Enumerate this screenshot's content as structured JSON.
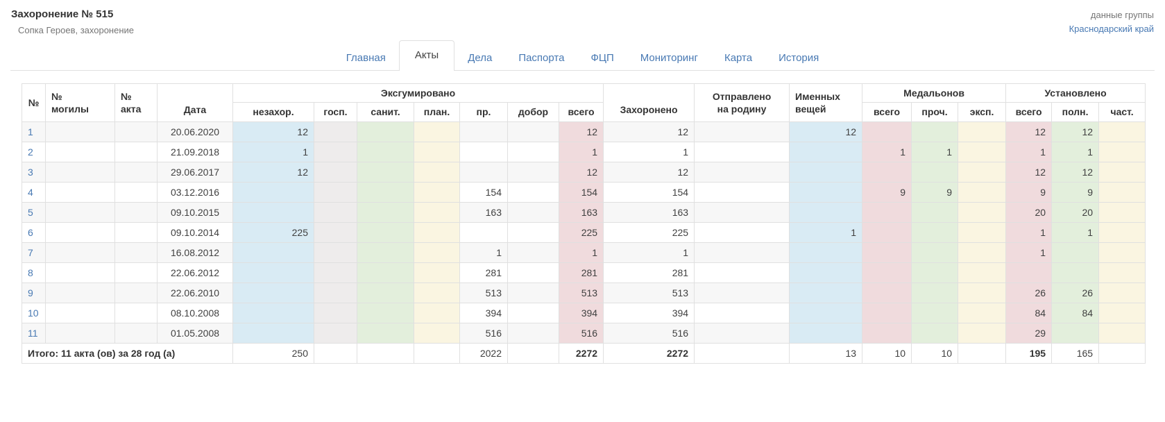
{
  "page": {
    "title": "Захоронение № 515",
    "subtitle": "Сопка Героев, захоронение",
    "group_label": "данные группы",
    "group_link": "Краснодарский край"
  },
  "tabs": [
    {
      "label": "Главная",
      "active": false
    },
    {
      "label": "Акты",
      "active": true
    },
    {
      "label": "Дела",
      "active": false
    },
    {
      "label": "Паспорта",
      "active": false
    },
    {
      "label": "ФЦП",
      "active": false
    },
    {
      "label": "Мониторинг",
      "active": false
    },
    {
      "label": "Карта",
      "active": false
    },
    {
      "label": "История",
      "active": false
    }
  ],
  "colors": {
    "link": "#4879b3",
    "text": "#3c3c3c",
    "muted": "#757575",
    "border": "#e0e0e0",
    "zebra": "#f7f7f7",
    "tint_blue": "#d9ebf4",
    "tint_gray": "#eeecec",
    "tint_green": "#e3efdc",
    "tint_cream": "#faf5e1",
    "tint_pink": "#f0dbdd"
  },
  "table": {
    "header": {
      "no": "№",
      "grave_no": "№\nмогилы",
      "act_no": "№\nакта",
      "date": "Дата",
      "exhumed": "Эксгумировано",
      "exhumed_cols": [
        "незахор.",
        "госп.",
        "санит.",
        "план.",
        "пр.",
        "добор",
        "всего"
      ],
      "buried": "Захоронено",
      "sent_home": "Отправлено\nна родину",
      "items": "Именных\nвещей",
      "medallions": "Медальонов",
      "medallions_cols": [
        "всего",
        "проч.",
        "эксп."
      ],
      "established": "Установлено",
      "established_cols": [
        "всего",
        "полн.",
        "част."
      ]
    },
    "rows": [
      {
        "no": "1",
        "grave_no": "",
        "act_no": "",
        "date": "20.06.2020",
        "nezahor": "12",
        "gosp": "",
        "sanit": "",
        "plan": "",
        "pr": "",
        "dobor": "",
        "vsego": "12",
        "buried": "12",
        "sent": "",
        "items": "12",
        "med_vsego": "",
        "med_proch": "",
        "med_eksp": "",
        "ust_vsego": "12",
        "ust_poln": "12",
        "ust_chast": ""
      },
      {
        "no": "2",
        "grave_no": "",
        "act_no": "",
        "date": "21.09.2018",
        "nezahor": "1",
        "gosp": "",
        "sanit": "",
        "plan": "",
        "pr": "",
        "dobor": "",
        "vsego": "1",
        "buried": "1",
        "sent": "",
        "items": "",
        "med_vsego": "1",
        "med_proch": "1",
        "med_eksp": "",
        "ust_vsego": "1",
        "ust_poln": "1",
        "ust_chast": ""
      },
      {
        "no": "3",
        "grave_no": "",
        "act_no": "",
        "date": "29.06.2017",
        "nezahor": "12",
        "gosp": "",
        "sanit": "",
        "plan": "",
        "pr": "",
        "dobor": "",
        "vsego": "12",
        "buried": "12",
        "sent": "",
        "items": "",
        "med_vsego": "",
        "med_proch": "",
        "med_eksp": "",
        "ust_vsego": "12",
        "ust_poln": "12",
        "ust_chast": ""
      },
      {
        "no": "4",
        "grave_no": "",
        "act_no": "",
        "date": "03.12.2016",
        "nezahor": "",
        "gosp": "",
        "sanit": "",
        "plan": "",
        "pr": "154",
        "dobor": "",
        "vsego": "154",
        "buried": "154",
        "sent": "",
        "items": "",
        "med_vsego": "9",
        "med_proch": "9",
        "med_eksp": "",
        "ust_vsego": "9",
        "ust_poln": "9",
        "ust_chast": ""
      },
      {
        "no": "5",
        "grave_no": "",
        "act_no": "",
        "date": "09.10.2015",
        "nezahor": "",
        "gosp": "",
        "sanit": "",
        "plan": "",
        "pr": "163",
        "dobor": "",
        "vsego": "163",
        "buried": "163",
        "sent": "",
        "items": "",
        "med_vsego": "",
        "med_proch": "",
        "med_eksp": "",
        "ust_vsego": "20",
        "ust_poln": "20",
        "ust_chast": ""
      },
      {
        "no": "6",
        "grave_no": "",
        "act_no": "",
        "date": "09.10.2014",
        "nezahor": "225",
        "gosp": "",
        "sanit": "",
        "plan": "",
        "pr": "",
        "dobor": "",
        "vsego": "225",
        "buried": "225",
        "sent": "",
        "items": "1",
        "med_vsego": "",
        "med_proch": "",
        "med_eksp": "",
        "ust_vsego": "1",
        "ust_poln": "1",
        "ust_chast": ""
      },
      {
        "no": "7",
        "grave_no": "",
        "act_no": "",
        "date": "16.08.2012",
        "nezahor": "",
        "gosp": "",
        "sanit": "",
        "plan": "",
        "pr": "1",
        "dobor": "",
        "vsego": "1",
        "buried": "1",
        "sent": "",
        "items": "",
        "med_vsego": "",
        "med_proch": "",
        "med_eksp": "",
        "ust_vsego": "1",
        "ust_poln": "",
        "ust_chast": ""
      },
      {
        "no": "8",
        "grave_no": "",
        "act_no": "",
        "date": "22.06.2012",
        "nezahor": "",
        "gosp": "",
        "sanit": "",
        "plan": "",
        "pr": "281",
        "dobor": "",
        "vsego": "281",
        "buried": "281",
        "sent": "",
        "items": "",
        "med_vsego": "",
        "med_proch": "",
        "med_eksp": "",
        "ust_vsego": "",
        "ust_poln": "",
        "ust_chast": ""
      },
      {
        "no": "9",
        "grave_no": "",
        "act_no": "",
        "date": "22.06.2010",
        "nezahor": "",
        "gosp": "",
        "sanit": "",
        "plan": "",
        "pr": "513",
        "dobor": "",
        "vsego": "513",
        "buried": "513",
        "sent": "",
        "items": "",
        "med_vsego": "",
        "med_proch": "",
        "med_eksp": "",
        "ust_vsego": "26",
        "ust_poln": "26",
        "ust_chast": ""
      },
      {
        "no": "10",
        "grave_no": "",
        "act_no": "",
        "date": "08.10.2008",
        "nezahor": "",
        "gosp": "",
        "sanit": "",
        "plan": "",
        "pr": "394",
        "dobor": "",
        "vsego": "394",
        "buried": "394",
        "sent": "",
        "items": "",
        "med_vsego": "",
        "med_proch": "",
        "med_eksp": "",
        "ust_vsego": "84",
        "ust_poln": "84",
        "ust_chast": ""
      },
      {
        "no": "11",
        "grave_no": "",
        "act_no": "",
        "date": "01.05.2008",
        "nezahor": "",
        "gosp": "",
        "sanit": "",
        "plan": "",
        "pr": "516",
        "dobor": "",
        "vsego": "516",
        "buried": "516",
        "sent": "",
        "items": "",
        "med_vsego": "",
        "med_proch": "",
        "med_eksp": "",
        "ust_vsego": "29",
        "ust_poln": "",
        "ust_chast": ""
      }
    ],
    "totals": {
      "label": "Итого: 11 акта (ов) за 28 год (а)",
      "nezahor": "250",
      "gosp": "",
      "sanit": "",
      "plan": "",
      "pr": "2022",
      "dobor": "",
      "vsego": "2272",
      "buried": "2272",
      "sent": "",
      "items": "13",
      "med_vsego": "10",
      "med_proch": "10",
      "med_eksp": "",
      "ust_vsego": "195",
      "ust_poln": "165",
      "ust_chast": ""
    }
  }
}
